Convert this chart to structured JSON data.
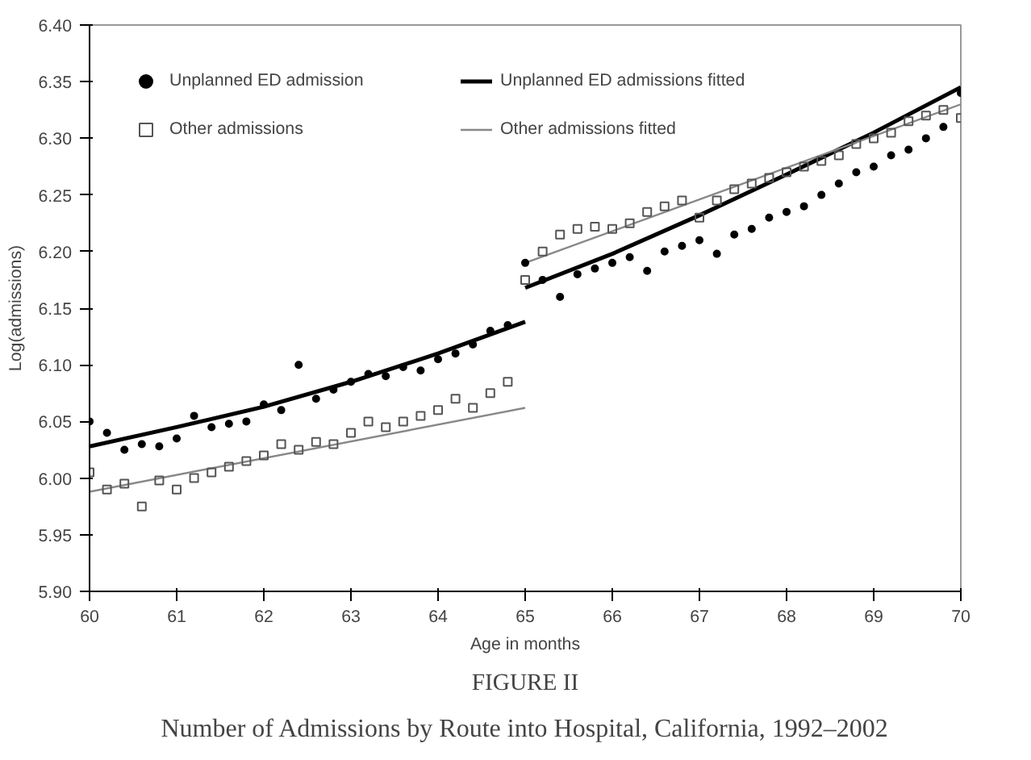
{
  "chart_data": {
    "type": "scatter",
    "title": "FIGURE II",
    "subtitle": "Number of Admissions by Route into Hospital, California, 1992–2002",
    "xlabel": "Age in months",
    "ylabel": "Log(admissions)",
    "xlim": [
      60,
      70
    ],
    "ylim": [
      5.9,
      6.4
    ],
    "xticks": [
      60,
      61,
      62,
      63,
      64,
      65,
      66,
      67,
      68,
      69,
      70
    ],
    "yticks": [
      {
        "value": 5.9,
        "label": "5.90"
      },
      {
        "value": 5.95,
        "label": "5.95"
      },
      {
        "value": 6.0,
        "label": "6.00"
      },
      {
        "value": 6.05,
        "label": "6.05"
      },
      {
        "value": 6.1,
        "label": "6.10"
      },
      {
        "value": 6.15,
        "label": "6.15"
      },
      {
        "value": 6.2,
        "label": "6.20"
      },
      {
        "value": 6.25,
        "label": "6.25"
      },
      {
        "value": 6.3,
        "label": "6.30"
      },
      {
        "value": 6.35,
        "label": "6.35"
      },
      {
        "value": 6.4,
        "label": "6.40"
      }
    ],
    "grid": false,
    "legend": "top left",
    "series": [
      {
        "name": "Unplanned ED admission",
        "marker": "circle",
        "color": "#000000",
        "x": [
          60.0,
          60.2,
          60.4,
          60.6,
          60.8,
          61.0,
          61.2,
          61.4,
          61.6,
          61.8,
          62.0,
          62.2,
          62.4,
          62.6,
          62.8,
          63.0,
          63.2,
          63.4,
          63.6,
          63.8,
          64.0,
          64.2,
          64.4,
          64.6,
          64.8,
          65.0,
          65.2,
          65.4,
          65.6,
          65.8,
          66.0,
          66.2,
          66.4,
          66.6,
          66.8,
          67.0,
          67.2,
          67.4,
          67.6,
          67.8,
          68.0,
          68.2,
          68.4,
          68.6,
          68.8,
          69.0,
          69.2,
          69.4,
          69.6,
          69.8,
          70.0
        ],
        "values": [
          6.05,
          6.04,
          6.025,
          6.03,
          6.028,
          6.035,
          6.055,
          6.045,
          6.048,
          6.05,
          6.065,
          6.06,
          6.1,
          6.07,
          6.078,
          6.085,
          6.092,
          6.09,
          6.098,
          6.095,
          6.105,
          6.11,
          6.118,
          6.13,
          6.135,
          6.19,
          6.175,
          6.16,
          6.18,
          6.185,
          6.19,
          6.195,
          6.183,
          6.2,
          6.205,
          6.21,
          6.198,
          6.215,
          6.22,
          6.23,
          6.235,
          6.24,
          6.25,
          6.26,
          6.27,
          6.275,
          6.285,
          6.29,
          6.3,
          6.31,
          6.34
        ]
      },
      {
        "name": "Unplanned ED admissions fitted",
        "type": "line",
        "line_style": "solid",
        "color": "#000000",
        "x": [
          60,
          61,
          62,
          63,
          64,
          65
        ],
        "values": [
          6.028,
          6.045,
          6.063,
          6.085,
          6.11,
          6.138
        ]
      },
      {
        "type": "line",
        "line_style": "solid",
        "color": "#000000",
        "x": [
          65,
          66,
          67,
          68,
          69,
          70
        ],
        "values": [
          6.168,
          6.198,
          6.232,
          6.268,
          6.305,
          6.345
        ]
      },
      {
        "name": "Other admissions",
        "marker": "square",
        "color": "#555555",
        "x": [
          60.0,
          60.2,
          60.4,
          60.6,
          60.8,
          61.0,
          61.2,
          61.4,
          61.6,
          61.8,
          62.0,
          62.2,
          62.4,
          62.6,
          62.8,
          63.0,
          63.2,
          63.4,
          63.6,
          63.8,
          64.0,
          64.2,
          64.4,
          64.6,
          64.8,
          65.0,
          65.2,
          65.4,
          65.6,
          65.8,
          66.0,
          66.2,
          66.4,
          66.6,
          66.8,
          67.0,
          67.2,
          67.4,
          67.6,
          67.8,
          68.0,
          68.2,
          68.4,
          68.6,
          68.8,
          69.0,
          69.2,
          69.4,
          69.6,
          69.8,
          70.0
        ],
        "values": [
          6.005,
          5.99,
          5.995,
          5.975,
          5.998,
          5.99,
          6.0,
          6.005,
          6.01,
          6.015,
          6.02,
          6.03,
          6.025,
          6.032,
          6.03,
          6.04,
          6.05,
          6.045,
          6.05,
          6.055,
          6.06,
          6.07,
          6.062,
          6.075,
          6.085,
          6.175,
          6.2,
          6.215,
          6.22,
          6.222,
          6.22,
          6.225,
          6.235,
          6.24,
          6.245,
          6.23,
          6.245,
          6.255,
          6.26,
          6.265,
          6.27,
          6.275,
          6.28,
          6.285,
          6.295,
          6.3,
          6.305,
          6.315,
          6.32,
          6.325,
          6.318
        ]
      },
      {
        "name": "Other admissions fitted",
        "type": "line",
        "line_style": "solid",
        "color": "#888888",
        "x": [
          60,
          65
        ],
        "values": [
          5.988,
          6.062
        ]
      },
      {
        "type": "line",
        "line_style": "solid",
        "color": "#888888",
        "x": [
          65,
          70
        ],
        "values": [
          6.19,
          6.33
        ]
      }
    ]
  }
}
